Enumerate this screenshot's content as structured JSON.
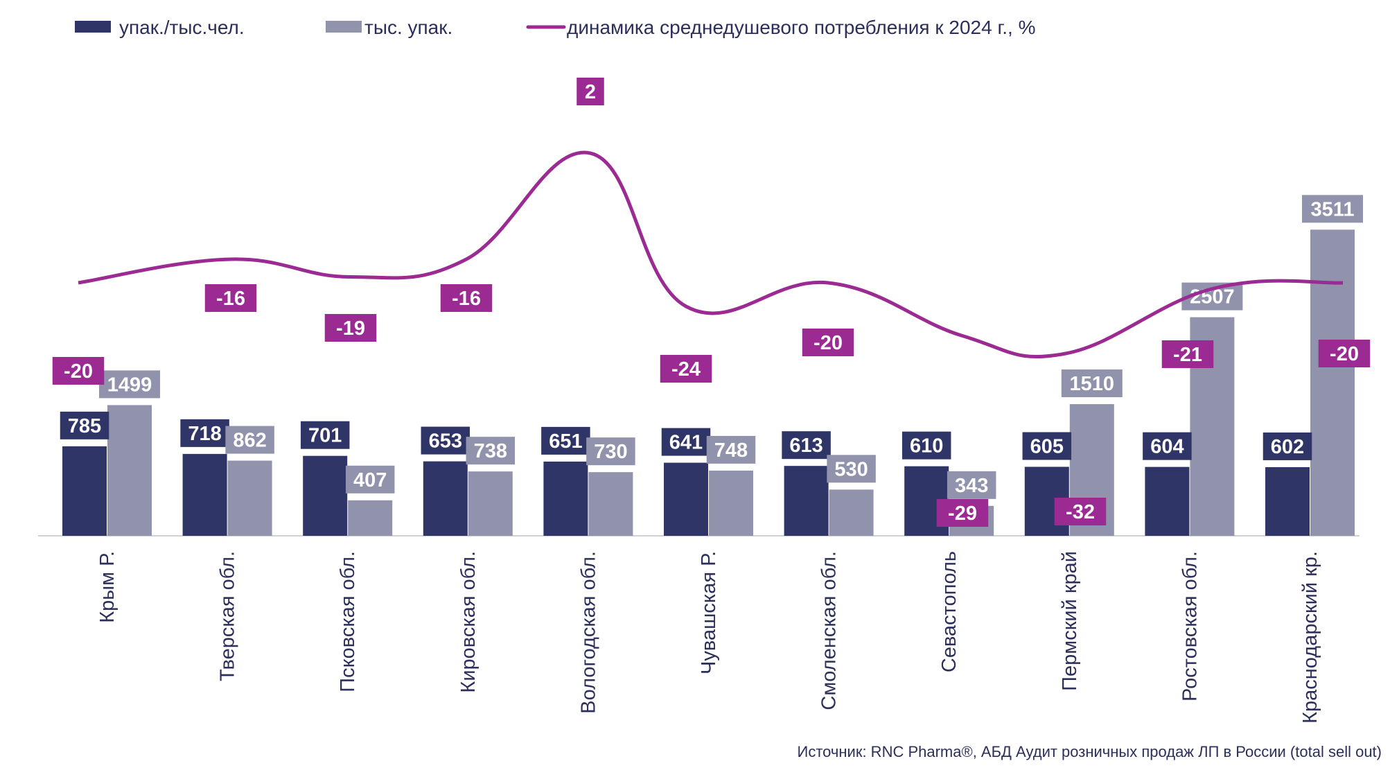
{
  "chart_data": {
    "type": "bar",
    "categories": [
      "Крым Р.",
      "Тверская обл.",
      "Псковская обл.",
      "Кировская обл.",
      "Вологодская обл.",
      "Чувашская Р.",
      "Смоленская обл.",
      "Севастополь",
      "Пермский край",
      "Ростовская обл.",
      "Краснодарский кр."
    ],
    "series": [
      {
        "name": "упак./тыс.чел.",
        "kind": "bar",
        "color": "#303567",
        "values": [
          785,
          718,
          701,
          653,
          651,
          641,
          613,
          610,
          605,
          604,
          602
        ]
      },
      {
        "name": "тыс. упак.",
        "kind": "bar",
        "color": "#9193ad",
        "values": [
          1499,
          862,
          407,
          738,
          730,
          748,
          530,
          343,
          1510,
          2507,
          3511
        ]
      },
      {
        "name": "динамика среднедушевого потребления к 2024 г., %",
        "kind": "line",
        "color": "#9b2a93",
        "values": [
          -20,
          -16,
          -19,
          -16,
          2,
          -24,
          -20,
          -29,
          -32,
          -21,
          -20
        ]
      }
    ],
    "legend_position": "top-left",
    "grid": false,
    "source": "Источник: RNC Pharma®, АБД Аудит розничных продаж ЛП в России (total sell out)"
  }
}
